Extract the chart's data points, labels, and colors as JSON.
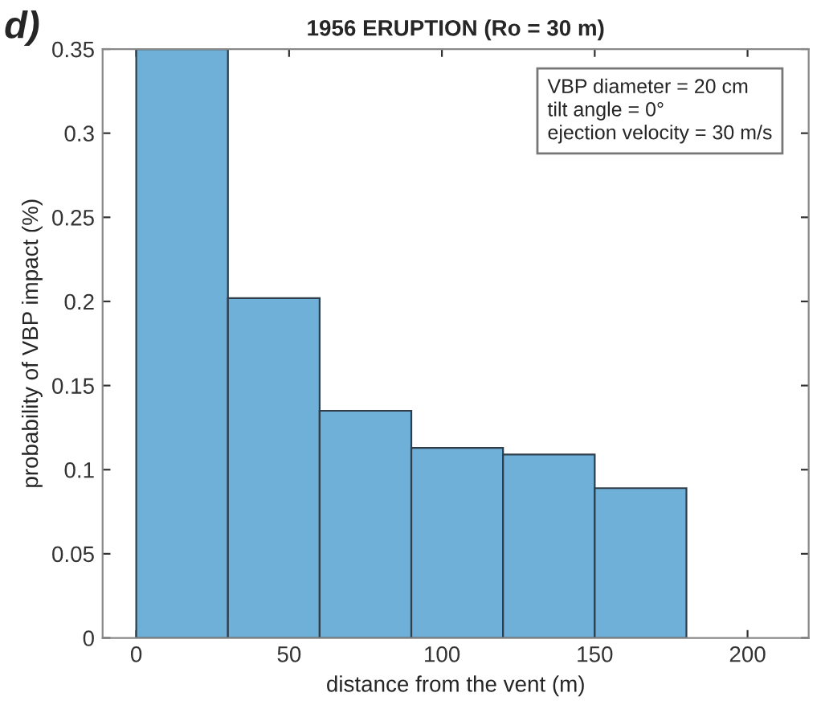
{
  "chart_data": {
    "type": "histogram",
    "title": "1956 ERUPTION (Ro = 30 m)",
    "xlabel": "distance from the vent (m)",
    "ylabel": "probability of VBP impact (%)",
    "bins": [
      0,
      30,
      60,
      90,
      120,
      150,
      180
    ],
    "values": [
      0.35,
      0.202,
      0.135,
      0.113,
      0.109,
      0.089
    ],
    "color": "#6fb0d8",
    "xlim": [
      -11,
      220
    ],
    "xticks": [
      0,
      50,
      100,
      150,
      200
    ],
    "ylim": [
      0,
      0.35
    ],
    "yticks": [
      0,
      0.05,
      0.1,
      0.15,
      0.2,
      0.25,
      0.3,
      0.35
    ],
    "grid": false,
    "annotations": [
      "d)",
      "VBP diameter = 20 cm\ntilt angle = 0°\nejection velocity = 30 m/s"
    ]
  }
}
